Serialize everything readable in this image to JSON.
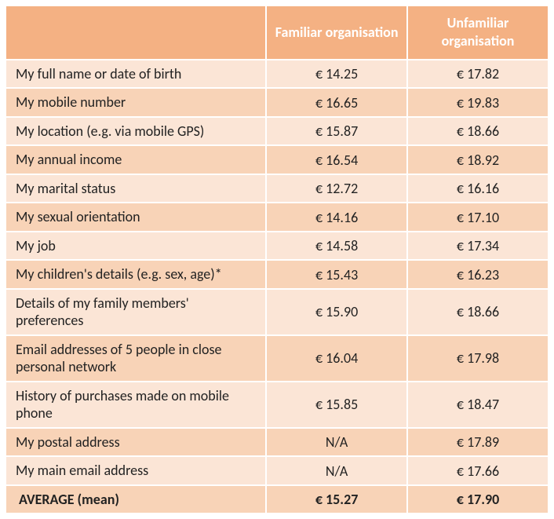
{
  "table": {
    "type": "table",
    "header_bg": "#f4b183",
    "row_stripe_light": "#fbe5d6",
    "row_stripe_dark": "#f8d3b7",
    "border_color": "#ffffff",
    "text_color": "#222222",
    "header_text_color": "#ffffff",
    "font_family": "Calibri, 'Segoe UI', Arial, sans-serif",
    "header_fontsize": 18,
    "body_fontsize": 18,
    "columns": [
      {
        "label": "",
        "width_pct": 48,
        "align": "left"
      },
      {
        "label": "Familiar organisation",
        "width_pct": 26,
        "align": "center"
      },
      {
        "label": "Unfamiliar organisation",
        "width_pct": 26,
        "align": "center"
      }
    ],
    "rows": [
      {
        "label": "My full name or date of birth",
        "familiar": "€ 14.25",
        "unfamiliar": "€ 17.82"
      },
      {
        "label": "My mobile number",
        "familiar": "€ 16.65",
        "unfamiliar": "€ 19.83"
      },
      {
        "label": "My location (e.g. via mobile GPS)",
        "familiar": "€ 15.87",
        "unfamiliar": "€ 18.66"
      },
      {
        "label": "My annual income",
        "familiar": "€ 16.54",
        "unfamiliar": "€ 18.92"
      },
      {
        "label": "My marital status",
        "familiar": "€ 12.72",
        "unfamiliar": "€ 16.16"
      },
      {
        "label": "My sexual orientation",
        "familiar": "€ 14.16",
        "unfamiliar": "€ 17.10"
      },
      {
        "label": "My job",
        "familiar": "€ 14.58",
        "unfamiliar": "€ 17.34"
      },
      {
        "label": "My children's details (e.g. sex, age)*",
        "familiar": "€ 15.43",
        "unfamiliar": "€ 16.23"
      },
      {
        "label": "Details of my family members' preferences",
        "familiar": "€ 15.90",
        "unfamiliar": "€ 18.66"
      },
      {
        "label": "Email addresses of 5 people in close personal network",
        "familiar": "€ 16.04",
        "unfamiliar": "€ 17.98"
      },
      {
        "label": "History of purchases made on mobile phone",
        "familiar": "€ 15.85",
        "unfamiliar": "€ 18.47"
      },
      {
        "label": "My postal address",
        "familiar": "N/A",
        "unfamiliar": "€ 17.89"
      },
      {
        "label": "My main email address",
        "familiar": "N/A",
        "unfamiliar": "€ 17.66"
      }
    ],
    "average": {
      "label": "AVERAGE (mean)",
      "familiar": "€ 15.27",
      "unfamiliar": "€ 17.90"
    }
  }
}
